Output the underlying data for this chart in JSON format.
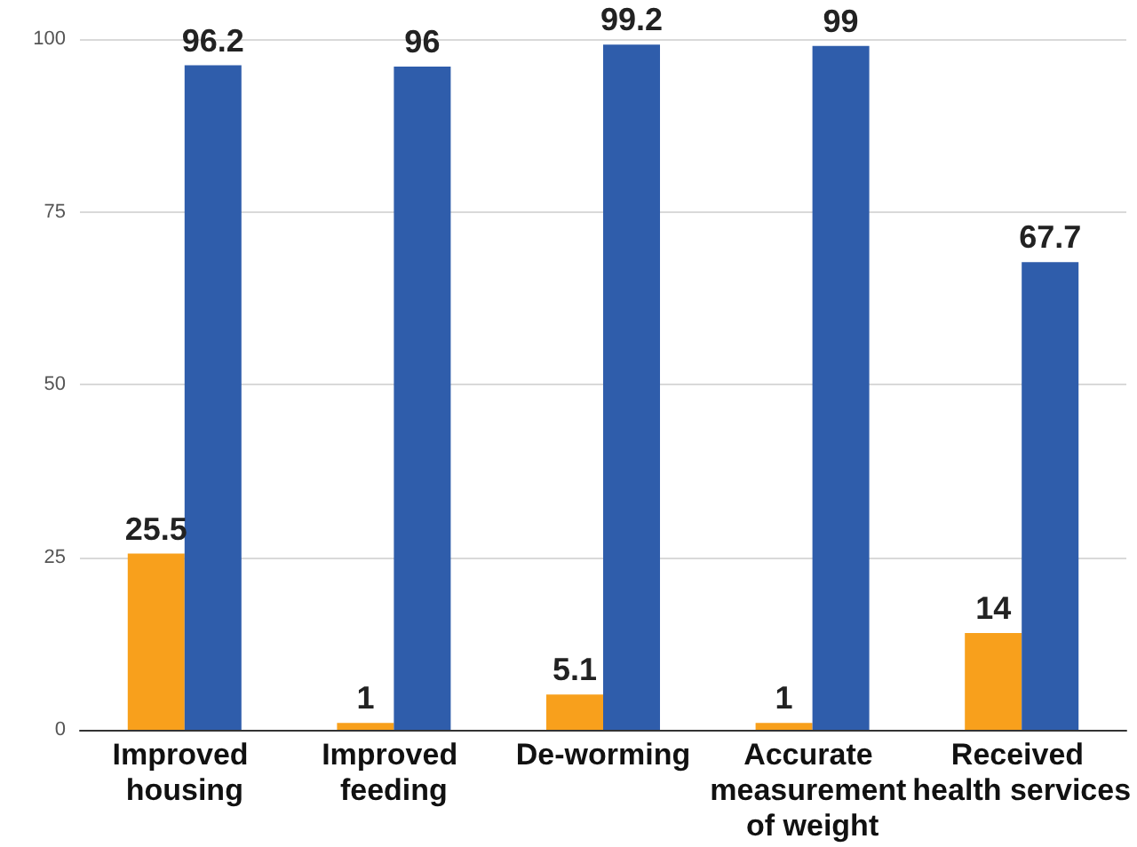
{
  "chart_data": {
    "type": "bar",
    "categories": [
      "Improved housing",
      "Improved feeding",
      "De-worming",
      "Accurate measurement of weight",
      "Received health services"
    ],
    "series": [
      {
        "color": "#f8a01c",
        "values": [
          25.5,
          1,
          5.1,
          1,
          14
        ]
      },
      {
        "color": "#2f5dab",
        "values": [
          96.2,
          96,
          99.2,
          99,
          67.7
        ]
      }
    ],
    "ylim": [
      0,
      100
    ],
    "yticks": [
      0,
      25,
      50,
      75,
      100
    ],
    "grid": "y",
    "data_labels": true
  }
}
